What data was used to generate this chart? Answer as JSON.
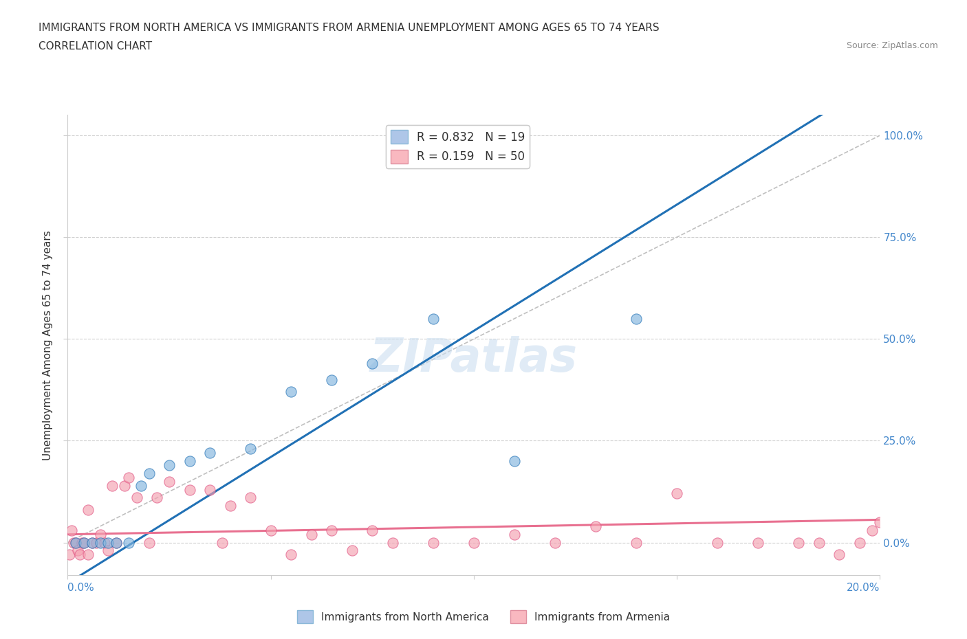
{
  "title_line1": "IMMIGRANTS FROM NORTH AMERICA VS IMMIGRANTS FROM ARMENIA UNEMPLOYMENT AMONG AGES 65 TO 74 YEARS",
  "title_line2": "CORRELATION CHART",
  "source_text": "Source: ZipAtlas.com",
  "xlabel_vals": [
    0.0,
    5.0,
    10.0,
    15.0,
    20.0
  ],
  "ylabel_vals": [
    0.0,
    25.0,
    50.0,
    75.0,
    100.0
  ],
  "xmin": 0.0,
  "xmax": 20.0,
  "ymin": -8.0,
  "ymax": 105.0,
  "blue_color": "#82b4de",
  "pink_color": "#f4a0b0",
  "blue_line_color": "#2171b5",
  "pink_line_color": "#e87090",
  "diagonal_color": "#c0c0c0",
  "blue_scatter_x": [
    0.2,
    0.4,
    0.6,
    0.8,
    1.0,
    1.2,
    1.5,
    1.8,
    2.0,
    2.5,
    3.0,
    3.5,
    4.5,
    5.5,
    6.5,
    7.5,
    9.0,
    11.0,
    14.0
  ],
  "blue_scatter_y": [
    0.0,
    0.0,
    0.0,
    0.0,
    0.0,
    0.0,
    0.0,
    14.0,
    17.0,
    19.0,
    20.0,
    22.0,
    23.0,
    37.0,
    40.0,
    44.0,
    55.0,
    20.0,
    55.0
  ],
  "pink_scatter_x": [
    0.05,
    0.1,
    0.15,
    0.2,
    0.25,
    0.3,
    0.35,
    0.4,
    0.5,
    0.5,
    0.6,
    0.7,
    0.8,
    0.9,
    1.0,
    1.1,
    1.2,
    1.4,
    1.5,
    1.7,
    2.0,
    2.2,
    2.5,
    3.0,
    3.5,
    3.8,
    4.0,
    4.5,
    5.0,
    5.5,
    6.0,
    6.5,
    7.0,
    7.5,
    8.0,
    9.0,
    10.0,
    11.0,
    12.0,
    13.0,
    14.0,
    15.0,
    16.0,
    17.0,
    18.0,
    18.5,
    19.0,
    19.5,
    19.8,
    20.0
  ],
  "pink_scatter_y": [
    -3.0,
    3.0,
    0.0,
    0.0,
    -2.0,
    -3.0,
    0.0,
    0.0,
    -3.0,
    8.0,
    0.0,
    0.0,
    2.0,
    0.0,
    -2.0,
    14.0,
    0.0,
    14.0,
    16.0,
    11.0,
    0.0,
    11.0,
    15.0,
    13.0,
    13.0,
    0.0,
    9.0,
    11.0,
    3.0,
    -3.0,
    2.0,
    3.0,
    -2.0,
    3.0,
    0.0,
    0.0,
    0.0,
    2.0,
    0.0,
    4.0,
    0.0,
    12.0,
    0.0,
    0.0,
    0.0,
    0.0,
    -3.0,
    0.0,
    3.0,
    5.0
  ],
  "legend_blue_label": "R = 0.832   N = 19",
  "legend_pink_label": "R = 0.159   N = 50",
  "legend_blue_color": "#aec6e8",
  "legend_pink_color": "#f9b8c0",
  "bottom_legend_blue": "Immigrants from North America",
  "bottom_legend_pink": "Immigrants from Armenia",
  "watermark": "ZIPatlas",
  "scatter_size": 120,
  "scatter_alpha": 0.65,
  "blue_line_slope": 6.2,
  "blue_line_intercept": -10.0,
  "pink_line_slope": 0.18,
  "pink_line_intercept": 2.0
}
